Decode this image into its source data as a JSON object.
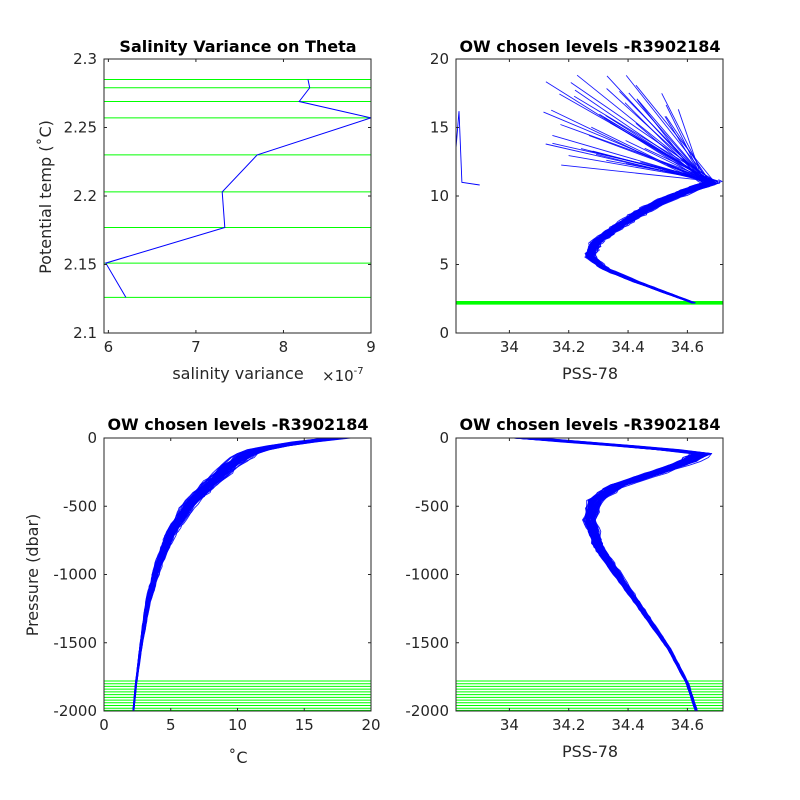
{
  "colors": {
    "profiles": "#0000ff",
    "levels": "#00ff00",
    "axes": "#262626"
  },
  "chart_data": [
    {
      "type": "line",
      "title": "Salinity Variance on Theta",
      "xlabel": "salinity variance",
      "x_exponent_label": "×10",
      "x_exponent_power": "-7",
      "ylabel": "Potential temp (˚C)",
      "xlim": [
        5.95,
        9.0
      ],
      "ylim": [
        2.1,
        2.3
      ],
      "xticks": [
        6,
        7,
        8,
        9
      ],
      "xtick_labels": [
        "6",
        "7",
        "8",
        "9"
      ],
      "yticks": [
        2.1,
        2.15,
        2.2,
        2.25,
        2.3
      ],
      "ytick_labels": [
        "2.1",
        "2.15",
        "2.2",
        "2.25",
        "2.3"
      ],
      "series": [
        {
          "x": [
            6.2,
            5.97,
            7.33,
            7.3,
            7.7,
            9.0,
            8.18,
            8.3,
            8.28
          ],
          "y": [
            2.126,
            2.151,
            2.177,
            2.203,
            2.23,
            2.257,
            2.269,
            2.279,
            2.285
          ]
        }
      ],
      "hlines": [
        2.126,
        2.151,
        2.177,
        2.203,
        2.23,
        2.257,
        2.269,
        2.279,
        2.285
      ]
    },
    {
      "type": "line",
      "title": "OW chosen levels -R3902184",
      "xlabel": "PSS-78",
      "ylabel": "",
      "xlim": [
        33.82,
        34.72
      ],
      "ylim": [
        0,
        20
      ],
      "xticks": [
        34.0,
        34.2,
        34.4,
        34.6
      ],
      "xtick_labels": [
        "34",
        "34.2",
        "34.4",
        "34.6"
      ],
      "yticks": [
        0,
        5,
        10,
        15,
        20
      ],
      "ytick_labels": [
        "0",
        "5",
        "10",
        "15",
        "20"
      ],
      "profile_count": 90,
      "mean_profile": {
        "x": [
          34.62,
          34.52,
          34.42,
          34.32,
          34.27,
          34.29,
          34.36,
          34.44,
          34.52,
          34.6,
          34.68,
          34.65,
          34.45,
          34.2
        ],
        "y": [
          2.2,
          3.0,
          3.8,
          4.7,
          5.6,
          6.6,
          7.7,
          8.8,
          9.7,
          10.4,
          11.0,
          11.3,
          11.5,
          11.2
        ]
      },
      "hlines": [
        2.126,
        2.151,
        2.177,
        2.203,
        2.23,
        2.257,
        2.269,
        2.279,
        2.285
      ]
    },
    {
      "type": "line",
      "title": "OW chosen levels -R3902184",
      "xlabel": "˚C",
      "ylabel": "Pressure (dbar)",
      "xlim": [
        0,
        20
      ],
      "ylim": [
        -2000,
        0
      ],
      "xticks": [
        0,
        5,
        10,
        15,
        20
      ],
      "xtick_labels": [
        "0",
        "5",
        "10",
        "15",
        "20"
      ],
      "yticks": [
        -2000,
        -1500,
        -1000,
        -500,
        0
      ],
      "ytick_labels": [
        "-2000",
        "-1500",
        "-1000",
        "-500",
        "0"
      ],
      "profile_count": 80,
      "mean_profile": {
        "x": [
          2.2,
          2.4,
          2.8,
          3.3,
          4.0,
          5.0,
          6.3,
          7.8,
          9.5,
          11.0,
          14.0,
          17.5
        ],
        "y": [
          -2000,
          -1800,
          -1500,
          -1200,
          -950,
          -700,
          -500,
          -350,
          -200,
          -100,
          -40,
          0
        ]
      },
      "hlines": [
        -1780,
        -1800,
        -1820,
        -1840,
        -1860,
        -1880,
        -1900,
        -1920,
        -1940,
        -1960,
        -1980,
        -1995
      ]
    },
    {
      "type": "line",
      "title": "OW chosen levels -R3902184",
      "xlabel": "PSS-78",
      "ylabel": "",
      "xlim": [
        33.82,
        34.72
      ],
      "ylim": [
        -2000,
        0
      ],
      "xticks": [
        34.0,
        34.2,
        34.4,
        34.6
      ],
      "xtick_labels": [
        "34",
        "34.2",
        "34.4",
        "34.6"
      ],
      "yticks": [
        -2000,
        -1500,
        -1000,
        -500,
        0
      ],
      "ytick_labels": [
        "-2000",
        "-1500",
        "-1000",
        "-500",
        "0"
      ],
      "profile_count": 80,
      "mean_profile": {
        "x": [
          34.63,
          34.6,
          34.54,
          34.46,
          34.38,
          34.3,
          34.27,
          34.29,
          34.36,
          34.5,
          34.6,
          34.65,
          34.4,
          34.05
        ],
        "y": [
          -2000,
          -1800,
          -1550,
          -1300,
          -1050,
          -800,
          -600,
          -450,
          -350,
          -250,
          -170,
          -110,
          -60,
          0
        ]
      },
      "hlines": [
        -1780,
        -1800,
        -1820,
        -1840,
        -1860,
        -1880,
        -1900,
        -1920,
        -1940,
        -1960,
        -1980,
        -1995
      ]
    }
  ]
}
